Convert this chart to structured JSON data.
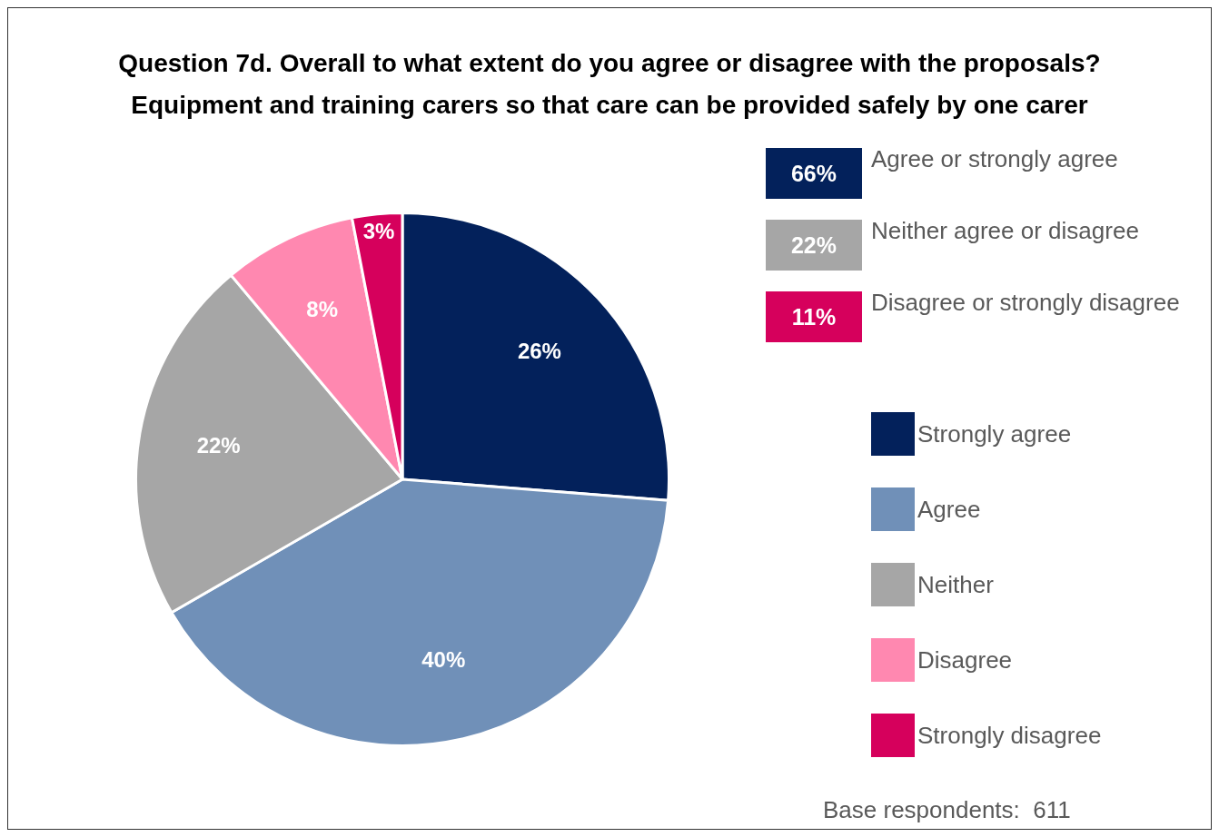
{
  "chart_data": {
    "type": "pie",
    "title": "Question 7d. Overall to what extent do you agree or disagree with the proposals?\nEquipment and training carers so that care can be provided safely by one carer",
    "categories": [
      "Strongly agree",
      "Agree",
      "Neither",
      "Disagree",
      "Strongly disagree"
    ],
    "values": [
      26,
      40,
      22,
      8,
      3
    ],
    "colors": [
      "#03215b",
      "#7090b8",
      "#a6a6a6",
      "#ff88b0",
      "#d6005c"
    ],
    "value_labels": [
      "26%",
      "40%",
      "22%",
      "8%",
      "3%"
    ],
    "legend": "right",
    "annotations": [
      "66%",
      "Agree or strongly agree",
      "22%",
      "Neither agree or disagree",
      "11%",
      "Disagree or strongly disagree",
      "Base respondents:  611"
    ]
  }
}
